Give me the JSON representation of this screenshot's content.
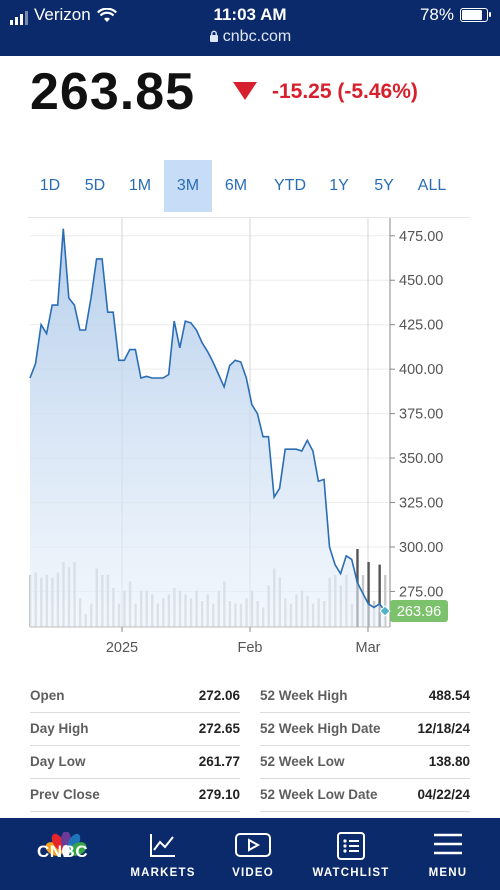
{
  "status_bar": {
    "carrier": "Verizon",
    "time": "11:03 AM",
    "battery": "78%",
    "url": "cnbc.com"
  },
  "quote": {
    "price": "263.85",
    "change": "-15.25 (-5.46%)",
    "direction": "down",
    "down_color": "#d6202e"
  },
  "ranges": [
    "1D",
    "5D",
    "1M",
    "3M",
    "6M",
    "YTD",
    "1Y",
    "5Y",
    "ALL"
  ],
  "active_range": "3M",
  "chart_data": {
    "type": "line",
    "ylim": [
      255,
      485
    ],
    "y_ticks": [
      "475.00",
      "450.00",
      "425.00",
      "400.00",
      "375.00",
      "350.00",
      "325.00",
      "300.00",
      "275.00"
    ],
    "y_tick_values": [
      475,
      450,
      425,
      400,
      375,
      350,
      325,
      300,
      275
    ],
    "x_tick_labels": [
      "2025",
      "Feb",
      "Mar"
    ],
    "last_value_label": "263.96",
    "series": [
      {
        "values": [
          395,
          403,
          425,
          420,
          436,
          436,
          479,
          440,
          436,
          422,
          422,
          440,
          462,
          462,
          432,
          432,
          405,
          405,
          411,
          411,
          395,
          396,
          395,
          395,
          395,
          397,
          427,
          412,
          427,
          426,
          422,
          415,
          410,
          404,
          397,
          390,
          402,
          405,
          404,
          395,
          380,
          375,
          362,
          362,
          328,
          333,
          355,
          355,
          355,
          354,
          360,
          354,
          337,
          338,
          300,
          290,
          285,
          295,
          293,
          280,
          274,
          268,
          266,
          268,
          264
        ]
      }
    ],
    "volume_values": [
      40,
      42,
      38,
      40,
      38,
      42,
      50,
      46,
      50,
      22,
      10,
      18,
      45,
      40,
      40,
      30,
      18,
      28,
      35,
      18,
      28,
      28,
      25,
      18,
      22,
      25,
      30,
      28,
      25,
      22,
      28,
      20,
      25,
      18,
      28,
      35,
      20,
      18,
      18,
      22,
      28,
      20,
      15,
      32,
      45,
      38,
      22,
      18,
      25,
      28,
      24,
      18,
      22,
      20,
      38,
      40,
      32,
      40,
      18,
      60,
      40,
      50,
      20,
      48,
      40
    ]
  },
  "stats": {
    "left": [
      {
        "label": "Open",
        "value": "272.06"
      },
      {
        "label": "Day High",
        "value": "272.65"
      },
      {
        "label": "Day Low",
        "value": "261.77"
      },
      {
        "label": "Prev Close",
        "value": "279.10"
      }
    ],
    "right": [
      {
        "label": "52 Week High",
        "value": "488.54"
      },
      {
        "label": "52 Week High Date",
        "value": "12/18/24"
      },
      {
        "label": "52 Week Low",
        "value": "138.80"
      },
      {
        "label": "52 Week Low Date",
        "value": "04/22/24"
      }
    ]
  },
  "nav": {
    "logo_text": "CNBC",
    "items": [
      {
        "label": "MARKETS",
        "icon": "chart-icon"
      },
      {
        "label": "VIDEO",
        "icon": "play-icon"
      },
      {
        "label": "WATCHLIST",
        "icon": "list-icon"
      },
      {
        "label": "MENU",
        "icon": "menu-icon"
      }
    ]
  },
  "colors": {
    "nav_bg": "#0b2a6b",
    "link_blue": "#2a6db5",
    "line_blue": "#2a6db5",
    "marker_green": "#7cc26c"
  }
}
